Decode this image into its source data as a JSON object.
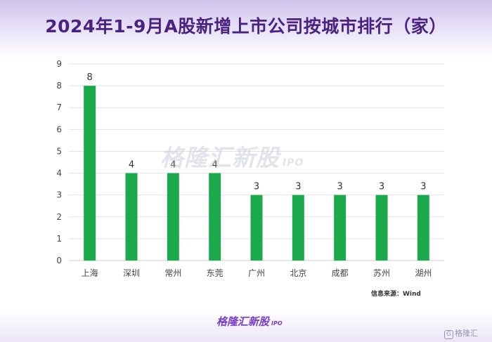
{
  "title": "2024年1-9月A股新增上市公司按城市排行（家）",
  "watermark": {
    "main": "格隆汇新股",
    "sub": "IPO"
  },
  "source": "信息来源：Wind",
  "brand": {
    "main": "格隆汇新股",
    "sub": "IPO"
  },
  "corner_mark": {
    "glyph": "G",
    "text": "格隆汇"
  },
  "colors": {
    "bar": "#1aaa4b",
    "title": "#4a2380",
    "grid": "#e3e3e3"
  },
  "chart_data": {
    "type": "bar",
    "categories": [
      "上海",
      "深圳",
      "常州",
      "东莞",
      "广州",
      "北京",
      "成都",
      "苏州",
      "湖州"
    ],
    "values": [
      8,
      4,
      4,
      4,
      3,
      3,
      3,
      3,
      3
    ],
    "ylim": [
      0,
      9
    ],
    "yticks": [
      0,
      1,
      2,
      3,
      4,
      5,
      6,
      7,
      8,
      9
    ],
    "data_labels": true,
    "grid": true,
    "legend": "none"
  }
}
